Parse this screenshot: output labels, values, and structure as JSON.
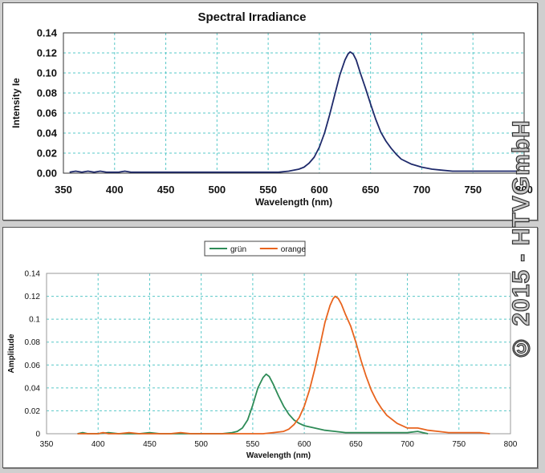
{
  "watermark": "© 2015 - HTVGmbH",
  "chart_data": [
    {
      "type": "line",
      "title": "Spectral Irradiance",
      "xlabel": "Wavelength (nm)",
      "ylabel": "Intensity Ie",
      "xlim": [
        350,
        800
      ],
      "ylim": [
        0,
        0.14
      ],
      "xticks": [
        350,
        400,
        450,
        500,
        550,
        600,
        650,
        700,
        750,
        800
      ],
      "yticks": [
        0.0,
        0.02,
        0.04,
        0.06,
        0.08,
        0.1,
        0.12,
        0.14
      ],
      "ytick_labels": [
        "0.00",
        "0.02",
        "0.04",
        "0.06",
        "0.08",
        "0.10",
        "0.12",
        "0.14"
      ],
      "grid": true,
      "series": [
        {
          "color": "#1f2a6b",
          "x": [
            356,
            362,
            368,
            374,
            380,
            386,
            392,
            398,
            404,
            410,
            416,
            422,
            430,
            440,
            450,
            460,
            470,
            480,
            490,
            500,
            510,
            520,
            530,
            540,
            550,
            560,
            570,
            575,
            580,
            585,
            590,
            595,
            600,
            605,
            610,
            615,
            620,
            625,
            628,
            630,
            633,
            636,
            640,
            645,
            650,
            655,
            660,
            665,
            670,
            675,
            680,
            690,
            700,
            710,
            720,
            730,
            740,
            750,
            760,
            770,
            780,
            790,
            800
          ],
          "y": [
            0.001,
            0.002,
            0.001,
            0.002,
            0.001,
            0.002,
            0.001,
            0.001,
            0.001,
            0.002,
            0.001,
            0.001,
            0.001,
            0.001,
            0.001,
            0.001,
            0.001,
            0.001,
            0.001,
            0.001,
            0.001,
            0.001,
            0.001,
            0.001,
            0.001,
            0.001,
            0.002,
            0.003,
            0.004,
            0.006,
            0.01,
            0.016,
            0.026,
            0.04,
            0.058,
            0.078,
            0.098,
            0.113,
            0.119,
            0.121,
            0.119,
            0.113,
            0.1,
            0.085,
            0.069,
            0.054,
            0.041,
            0.032,
            0.025,
            0.019,
            0.014,
            0.009,
            0.006,
            0.004,
            0.003,
            0.002,
            0.002,
            0.002,
            0.002,
            0.002,
            0.002,
            0.002,
            0.002
          ]
        }
      ]
    },
    {
      "type": "line",
      "title": "",
      "xlabel": "Wavelength (nm)",
      "ylabel": "Amplitude",
      "xlim": [
        350,
        800
      ],
      "ylim": [
        0,
        0.14
      ],
      "xticks": [
        350,
        400,
        450,
        500,
        550,
        600,
        650,
        700,
        750,
        800
      ],
      "yticks": [
        0,
        0.02,
        0.04,
        0.06,
        0.08,
        0.1,
        0.12,
        0.14
      ],
      "ytick_labels": [
        "0",
        "0.02",
        "0.04",
        "0.06",
        "0.08",
        "0.1",
        "0.12",
        "0.14"
      ],
      "grid": true,
      "legend_position": "top-left",
      "series": [
        {
          "name": "grün",
          "color": "#2e8b57",
          "x": [
            380,
            385,
            390,
            400,
            410,
            420,
            430,
            440,
            450,
            460,
            470,
            480,
            490,
            500,
            510,
            520,
            530,
            535,
            540,
            545,
            550,
            555,
            560,
            563,
            566,
            570,
            575,
            580,
            585,
            590,
            595,
            600,
            610,
            620,
            630,
            640,
            650,
            660,
            670,
            680,
            690,
            700,
            710,
            715,
            720
          ],
          "y": [
            0.0,
            0.001,
            0.0,
            0.0,
            0.001,
            0.0,
            0.0,
            0.0,
            0.001,
            0.0,
            0.0,
            0.0,
            0.0,
            0.0,
            0.0,
            0.0,
            0.001,
            0.002,
            0.005,
            0.012,
            0.025,
            0.04,
            0.049,
            0.052,
            0.05,
            0.043,
            0.033,
            0.024,
            0.017,
            0.012,
            0.009,
            0.007,
            0.005,
            0.003,
            0.002,
            0.001,
            0.001,
            0.001,
            0.001,
            0.001,
            0.001,
            0.001,
            0.002,
            0.001,
            0.0
          ]
        },
        {
          "name": "orange",
          "color": "#e8641e",
          "x": [
            380,
            390,
            400,
            405,
            410,
            420,
            430,
            440,
            450,
            460,
            470,
            480,
            490,
            500,
            510,
            520,
            530,
            540,
            550,
            560,
            570,
            580,
            585,
            590,
            595,
            600,
            605,
            610,
            615,
            620,
            625,
            628,
            630,
            633,
            636,
            640,
            645,
            650,
            655,
            660,
            665,
            670,
            675,
            680,
            690,
            700,
            710,
            715,
            720,
            730,
            740,
            750,
            760,
            770,
            780
          ],
          "y": [
            0.0,
            0.0,
            0.0,
            0.001,
            0.0,
            0.0,
            0.001,
            0.0,
            0.0,
            0.0,
            0.0,
            0.001,
            0.0,
            0.0,
            0.0,
            0.0,
            0.0,
            0.0,
            0.0,
            0.0,
            0.001,
            0.002,
            0.004,
            0.008,
            0.014,
            0.024,
            0.038,
            0.056,
            0.076,
            0.097,
            0.112,
            0.118,
            0.12,
            0.118,
            0.113,
            0.104,
            0.094,
            0.08,
            0.064,
            0.05,
            0.038,
            0.029,
            0.022,
            0.016,
            0.009,
            0.005,
            0.005,
            0.004,
            0.003,
            0.002,
            0.001,
            0.001,
            0.001,
            0.001,
            0.0
          ]
        }
      ]
    }
  ]
}
